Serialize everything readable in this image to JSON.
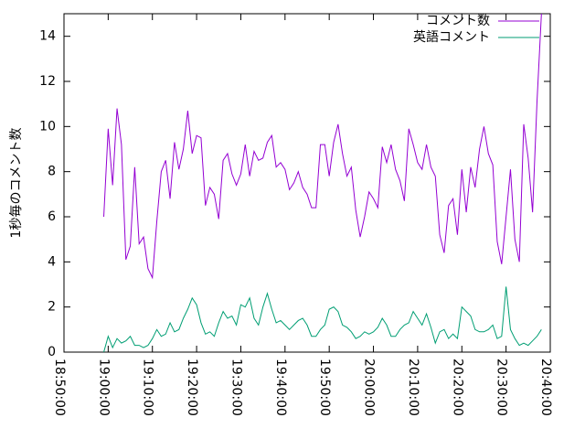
{
  "chart_data": {
    "type": "line",
    "ylabel": "1秒毎のコメント数",
    "x": [
      "18:59:00",
      "19:00:00",
      "19:01:00",
      "19:02:00",
      "19:03:00",
      "19:04:00",
      "19:05:00",
      "19:06:00",
      "19:07:00",
      "19:08:00",
      "19:09:00",
      "19:10:00",
      "19:11:00",
      "19:12:00",
      "19:13:00",
      "19:14:00",
      "19:15:00",
      "19:16:00",
      "19:17:00",
      "19:18:00",
      "19:19:00",
      "19:20:00",
      "19:21:00",
      "19:22:00",
      "19:23:00",
      "19:24:00",
      "19:25:00",
      "19:26:00",
      "19:27:00",
      "19:28:00",
      "19:29:00",
      "19:30:00",
      "19:31:00",
      "19:32:00",
      "19:33:00",
      "19:34:00",
      "19:35:00",
      "19:36:00",
      "19:37:00",
      "19:38:00",
      "19:39:00",
      "19:40:00",
      "19:41:00",
      "19:42:00",
      "19:43:00",
      "19:44:00",
      "19:45:00",
      "19:46:00",
      "19:47:00",
      "19:48:00",
      "19:49:00",
      "19:50:00",
      "19:51:00",
      "19:52:00",
      "19:53:00",
      "19:54:00",
      "19:55:00",
      "19:56:00",
      "19:57:00",
      "19:58:00",
      "19:59:00",
      "20:00:00",
      "20:01:00",
      "20:02:00",
      "20:03:00",
      "20:04:00",
      "20:05:00",
      "20:06:00",
      "20:07:00",
      "20:08:00",
      "20:09:00",
      "20:10:00",
      "20:11:00",
      "20:12:00",
      "20:13:00",
      "20:14:00",
      "20:15:00",
      "20:16:00",
      "20:17:00",
      "20:18:00",
      "20:19:00",
      "20:20:00",
      "20:21:00",
      "20:22:00",
      "20:23:00",
      "20:24:00",
      "20:25:00",
      "20:26:00",
      "20:27:00",
      "20:28:00",
      "20:29:00",
      "20:30:00",
      "20:31:00",
      "20:32:00",
      "20:33:00",
      "20:34:00",
      "20:35:00",
      "20:36:00",
      "20:37:00",
      "20:38:00"
    ],
    "series": [
      {
        "name": "コメント数",
        "color": "#9400d3",
        "values": [
          6,
          9.9,
          7.4,
          10.8,
          9.2,
          4.1,
          4.7,
          8.2,
          4.8,
          5.1,
          3.7,
          3.3,
          5.8,
          8.0,
          8.5,
          6.8,
          9.3,
          8.1,
          9.0,
          10.7,
          8.8,
          9.6,
          9.5,
          6.5,
          7.3,
          7.0,
          5.9,
          8.5,
          8.8,
          7.9,
          7.4,
          7.9,
          9.2,
          7.8,
          8.9,
          8.5,
          8.6,
          9.3,
          9.6,
          8.2,
          8.4,
          8.1,
          7.2,
          7.5,
          8.0,
          7.3,
          7.0,
          6.4,
          6.4,
          9.2,
          9.2,
          7.8,
          9.3,
          10.1,
          8.8,
          7.8,
          8.2,
          6.3,
          5.1,
          6.0,
          7.1,
          6.8,
          6.4,
          9.1,
          8.4,
          9.2,
          8.1,
          7.6,
          6.7,
          9.9,
          9.2,
          8.4,
          8.1,
          9.2,
          8.2,
          7.8,
          5.2,
          4.4,
          6.5,
          6.8,
          5.2,
          8.1,
          6.2,
          8.2,
          7.3,
          9.0,
          10.0,
          8.8,
          8.3,
          4.9,
          3.9,
          6.0,
          8.1,
          5.0,
          4.0,
          10.1,
          8.6,
          6.2,
          11.1,
          15
        ]
      },
      {
        "name": "英語コメント",
        "color": "#009e73",
        "values": [
          0,
          0.7,
          0.2,
          0.6,
          0.4,
          0.5,
          0.7,
          0.3,
          0.3,
          0.2,
          0.3,
          0.6,
          1.0,
          0.7,
          0.8,
          1.3,
          0.9,
          1.0,
          1.5,
          1.9,
          2.4,
          2.1,
          1.3,
          0.8,
          0.9,
          0.7,
          1.3,
          1.8,
          1.5,
          1.6,
          1.2,
          2.1,
          2.0,
          2.4,
          1.5,
          1.2,
          2.0,
          2.6,
          1.9,
          1.3,
          1.4,
          1.2,
          1.0,
          1.2,
          1.4,
          1.5,
          1.2,
          0.7,
          0.7,
          1.0,
          1.2,
          1.9,
          2.0,
          1.8,
          1.2,
          1.1,
          0.9,
          0.6,
          0.7,
          0.9,
          0.8,
          0.9,
          1.1,
          1.5,
          1.2,
          0.7,
          0.7,
          1.0,
          1.2,
          1.3,
          1.8,
          1.5,
          1.2,
          1.7,
          1.1,
          0.4,
          0.9,
          1.0,
          0.6,
          0.8,
          0.6,
          2.0,
          1.8,
          1.6,
          1.0,
          0.9,
          0.9,
          1.0,
          1.2,
          0.6,
          0.7,
          2.9,
          1.0,
          0.6,
          0.3,
          0.4,
          0.3,
          0.5,
          0.7,
          1.0
        ]
      }
    ],
    "xlim": [
      "18:50:00",
      "20:40:00"
    ],
    "xticks": [
      "18:50:00",
      "19:00:00",
      "19:10:00",
      "19:20:00",
      "19:30:00",
      "19:40:00",
      "19:50:00",
      "20:00:00",
      "20:10:00",
      "20:20:00",
      "20:30:00",
      "20:40:00"
    ],
    "ylim": [
      0,
      15
    ],
    "yticks": [
      0,
      2,
      4,
      6,
      8,
      10,
      12,
      14
    ],
    "legend": "top-right"
  }
}
